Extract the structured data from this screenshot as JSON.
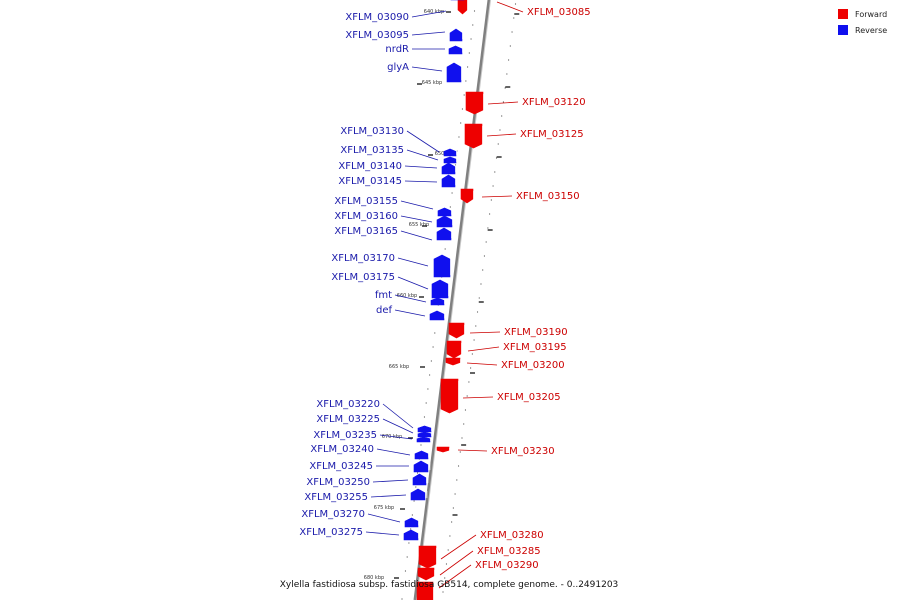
{
  "colors": {
    "forward": "#ee0000",
    "reverse": "#1010ee",
    "forward_label": "#cc0000",
    "reverse_label": "#1a1aaa",
    "backbone": "#808080"
  },
  "legend": {
    "forward": "Forward",
    "reverse": "Reverse"
  },
  "caption": "Xylella fastidiosa subsp. fastidiosa GB514, complete genome. - 0..2491203",
  "ticks": [
    {
      "label": "640 kbp"
    },
    {
      "label": "645 kbp"
    },
    {
      "label": "650 kbp"
    },
    {
      "label": "655 kbp"
    },
    {
      "label": "660 kbp"
    },
    {
      "label": "665 kbp"
    },
    {
      "label": "670 kbp"
    },
    {
      "label": "675 kbp"
    },
    {
      "label": "680 kbp"
    }
  ],
  "genes": [
    {
      "name": "XFLM_03085",
      "strand": "forward"
    },
    {
      "name": "XFLM_03090",
      "strand": "reverse"
    },
    {
      "name": "XFLM_03095",
      "strand": "reverse"
    },
    {
      "name": "nrdR",
      "strand": "reverse"
    },
    {
      "name": "glyA",
      "strand": "reverse"
    },
    {
      "name": "XFLM_03120",
      "strand": "forward"
    },
    {
      "name": "XFLM_03125",
      "strand": "forward"
    },
    {
      "name": "XFLM_03130",
      "strand": "reverse"
    },
    {
      "name": "XFLM_03135",
      "strand": "reverse"
    },
    {
      "name": "XFLM_03140",
      "strand": "reverse"
    },
    {
      "name": "XFLM_03145",
      "strand": "reverse"
    },
    {
      "name": "XFLM_03150",
      "strand": "forward"
    },
    {
      "name": "XFLM_03155",
      "strand": "reverse"
    },
    {
      "name": "XFLM_03160",
      "strand": "reverse"
    },
    {
      "name": "XFLM_03165",
      "strand": "reverse"
    },
    {
      "name": "XFLM_03170",
      "strand": "reverse"
    },
    {
      "name": "XFLM_03175",
      "strand": "reverse"
    },
    {
      "name": "fmt",
      "strand": "reverse"
    },
    {
      "name": "def",
      "strand": "reverse"
    },
    {
      "name": "XFLM_03190",
      "strand": "forward"
    },
    {
      "name": "XFLM_03195",
      "strand": "forward"
    },
    {
      "name": "XFLM_03200",
      "strand": "forward"
    },
    {
      "name": "XFLM_03205",
      "strand": "forward"
    },
    {
      "name": "XFLM_03220",
      "strand": "reverse"
    },
    {
      "name": "XFLM_03225",
      "strand": "reverse"
    },
    {
      "name": "XFLM_03235",
      "strand": "reverse"
    },
    {
      "name": "XFLM_03230",
      "strand": "forward"
    },
    {
      "name": "XFLM_03240",
      "strand": "reverse"
    },
    {
      "name": "XFLM_03245",
      "strand": "reverse"
    },
    {
      "name": "XFLM_03250",
      "strand": "reverse"
    },
    {
      "name": "XFLM_03255",
      "strand": "reverse"
    },
    {
      "name": "XFLM_03270",
      "strand": "reverse"
    },
    {
      "name": "XFLM_03275",
      "strand": "reverse"
    },
    {
      "name": "XFLM_03280",
      "strand": "forward"
    },
    {
      "name": "XFLM_03285",
      "strand": "forward"
    },
    {
      "name": "XFLM_03290",
      "strand": "forward"
    }
  ]
}
